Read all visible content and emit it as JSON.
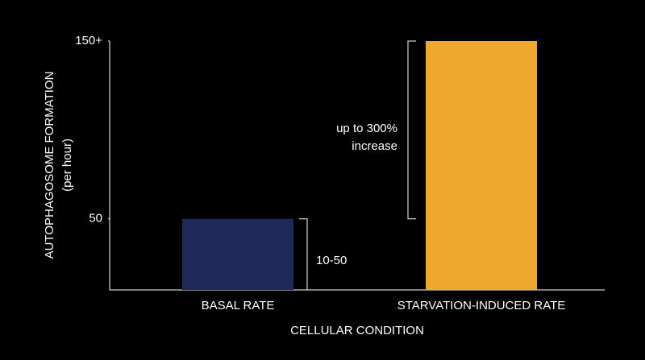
{
  "chart_data": {
    "type": "bar",
    "xlabel": "CELLULAR CONDITION",
    "ylabel": [
      "AUTOPHAGOSOME FORMATION",
      "(per hour)"
    ],
    "categories": [
      "BASAL RATE",
      "STARVATION-INDUCED RATE"
    ],
    "values": [
      50,
      150
    ],
    "colors": [
      "#1e2b5a",
      "#eea82e"
    ],
    "ylim": [
      10,
      150
    ],
    "yticks": [
      50,
      {
        "value": 150,
        "label": "150+"
      }
    ],
    "annotations": [
      "10-50",
      "up to 300%",
      "increase"
    ]
  }
}
